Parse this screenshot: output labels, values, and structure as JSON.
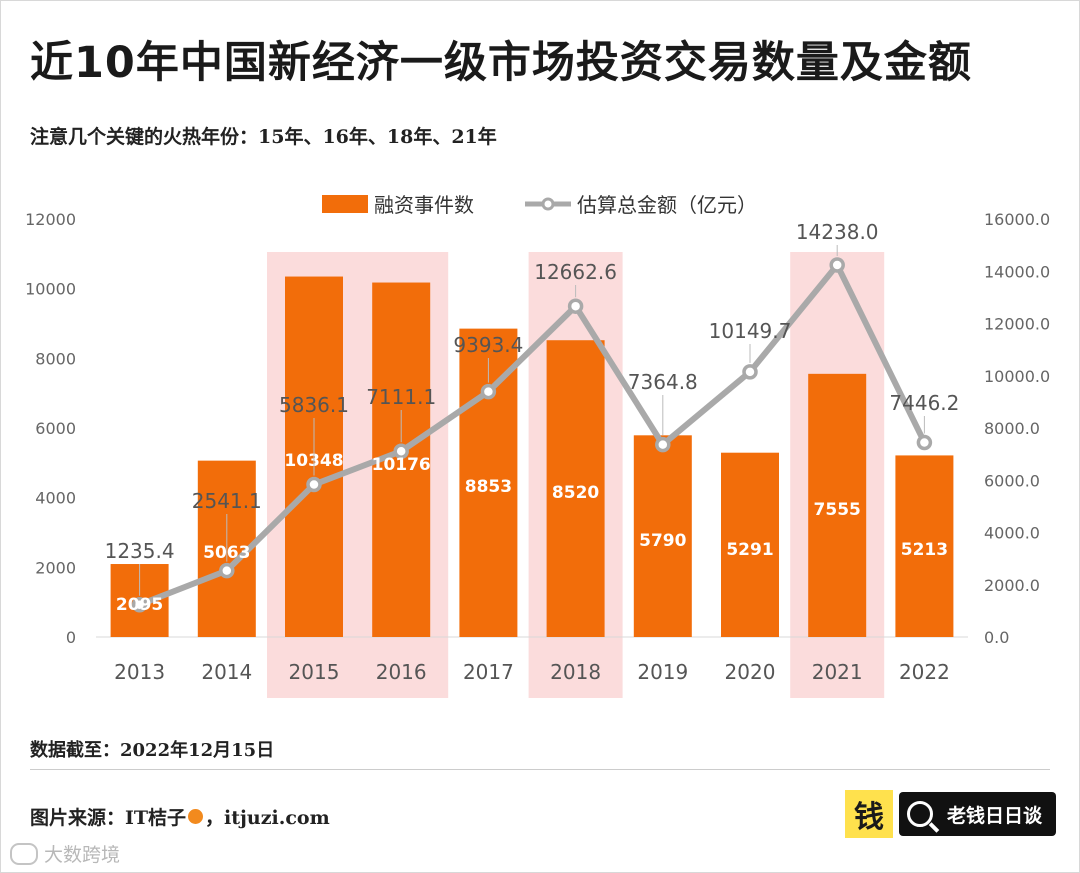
{
  "header": {
    "title": "近10年中国新经济一级市场投资交易数量及金额",
    "subtitle": "注意几个关键的火热年份：15年、16年、18年、21年"
  },
  "footer": {
    "date_note": "数据截至：2022年12月15日",
    "source_prefix": "图片来源：IT桔子",
    "source_suffix": "，itjuzi.com",
    "brand_logo": "钱",
    "brand_text": "老钱日日谈",
    "watermark_text": "大数跨境"
  },
  "icons": {
    "orange": "orange-icon",
    "search": "search-icon",
    "watermark": "watermark-logo-icon"
  },
  "colors": {
    "bar": "#f26d0a",
    "line": "#a9a9a9",
    "highlight": "#fbdcdc",
    "label_white": "#ffffff",
    "label_gray": "#555555"
  },
  "chart_data": {
    "type": "bar",
    "categories": [
      "2013",
      "2014",
      "2015",
      "2016",
      "2017",
      "2018",
      "2019",
      "2020",
      "2021",
      "2022"
    ],
    "series": [
      {
        "name": "融资事件数",
        "type": "bar",
        "axis": "left",
        "values": [
          2095,
          5063,
          10348,
          10176,
          8853,
          8520,
          5790,
          5291,
          7555,
          5213
        ],
        "labels": [
          "2095",
          "5063",
          "10348",
          "10176",
          "8853",
          "8520",
          "5790",
          "5291",
          "7555",
          "5213"
        ]
      },
      {
        "name": "估算总金额（亿元）",
        "type": "line",
        "axis": "right",
        "values": [
          1235.4,
          2541.1,
          5836.1,
          7111.1,
          9393.4,
          12662.6,
          7364.8,
          10149.7,
          14238.0,
          7446.2
        ],
        "labels": [
          "1235.4",
          "2541.1",
          "5836.1",
          "7111.1",
          "9393.4",
          "12662.6",
          "7364.8",
          "10149.7",
          "14238.0",
          "7446.2"
        ]
      }
    ],
    "highlighted_categories": [
      "2015",
      "2016",
      "2018",
      "2021"
    ],
    "y_left": {
      "lim": [
        0,
        12000
      ],
      "ticks": [
        "0",
        "2000",
        "4000",
        "6000",
        "8000",
        "10000",
        "12000"
      ]
    },
    "y_right": {
      "lim": [
        0,
        16000
      ],
      "ticks": [
        "0.0",
        "2000.0",
        "4000.0",
        "6000.0",
        "8000.0",
        "10000.0",
        "12000.0",
        "14000.0",
        "16000.0"
      ]
    },
    "legend_position": "top-center",
    "grid": false
  }
}
